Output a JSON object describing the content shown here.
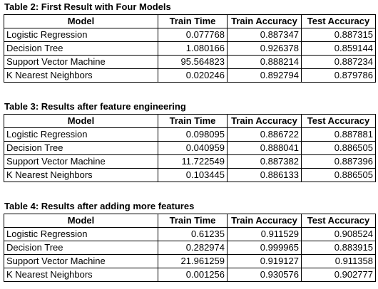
{
  "columns": [
    "Model",
    "Train Time",
    "Train Accuracy",
    "Test Accuracy"
  ],
  "tables": [
    {
      "caption": "Table 2: First Result with Four Models",
      "rows": [
        [
          "Logistic Regression",
          "0.077768",
          "0.887347",
          "0.887315"
        ],
        [
          "Decision Tree",
          "1.080166",
          "0.926378",
          "0.859144"
        ],
        [
          "Support Vector Machine",
          "95.564823",
          "0.888214",
          "0.887234"
        ],
        [
          "K Nearest Neighbors",
          "0.020246",
          "0.892794",
          "0.879786"
        ]
      ]
    },
    {
      "caption": "Table 3: Results after feature engineering",
      "rows": [
        [
          "Logistic Regression",
          "0.098095",
          "0.886722",
          "0.887881"
        ],
        [
          "Decision Tree",
          "0.040959",
          "0.888041",
          "0.886505"
        ],
        [
          "Support Vector Machine",
          "11.722549",
          "0.887382",
          "0.887396"
        ],
        [
          "K Nearest Neighbors",
          "0.103445",
          "0.886133",
          "0.886505"
        ]
      ]
    },
    {
      "caption": "Table 4: Results after adding more features",
      "rows": [
        [
          "Logistic Regression",
          "0.61235",
          "0.911529",
          "0.908524"
        ],
        [
          "Decision Tree",
          "0.282974",
          "0.999965",
          "0.883915"
        ],
        [
          "Support Vector Machine",
          "21.961259",
          "0.919127",
          "0.911358"
        ],
        [
          "K Nearest Neighbors",
          "0.001256",
          "0.930576",
          "0.902777"
        ]
      ]
    }
  ]
}
